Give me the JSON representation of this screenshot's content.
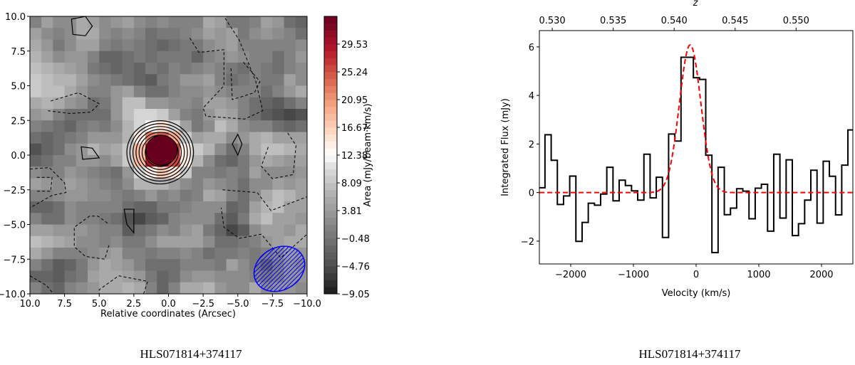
{
  "chart_data": [
    {
      "type": "heatmap",
      "xlabel": "Relative coordinates (Arcsec)",
      "ylabel": "",
      "xlim": [
        10.0,
        -10.0
      ],
      "ylim": [
        -10.0,
        10.0
      ],
      "xticks": [
        "10.0",
        "7.5",
        "5.0",
        "2.5",
        "0.0",
        "−2.5",
        "−5.0",
        "−7.5",
        "−10.0"
      ],
      "yticks": [
        "10.0",
        "7.5",
        "5.0",
        "2.5",
        "0.0",
        "−2.5",
        "−5.0",
        "−7.5",
        "−10.0"
      ],
      "colorbar": {
        "label": "Area (mJy/beam·km/s)",
        "range": [
          -9.05,
          33.81
        ],
        "ticks": [
          "29.53",
          "25.24",
          "20.95",
          "16.67",
          "12.38",
          "8.09",
          "3.81",
          "−0.48",
          "−4.76",
          "−9.05"
        ],
        "tick_values": [
          29.53,
          25.24,
          20.95,
          16.67,
          12.38,
          8.09,
          3.81,
          -0.48,
          -4.76,
          -9.05
        ],
        "colormap": "RdGy_r"
      },
      "source": {
        "x": 0.5,
        "y": 0.3,
        "peak": 32.0
      },
      "beam": {
        "x": -8.0,
        "y": -8.2,
        "major": 3.8,
        "minor": 2.7,
        "color": "#0000ff"
      },
      "caption": "HLS071814+374117"
    },
    {
      "type": "line",
      "xlabel": "Velocity (km/s)",
      "ylabel": "Integrated Flux (mJy)",
      "top_xlabel": "z",
      "xlim": [
        -2500,
        2500
      ],
      "ylim": [
        -2.94,
        6.67
      ],
      "xticks": [
        -2000,
        -1000,
        0,
        1000,
        2000
      ],
      "xtick_labels": [
        "−2000",
        "−1000",
        "0",
        "1000",
        "2000"
      ],
      "yticks": [
        -2,
        0,
        2,
        4,
        6
      ],
      "ytick_labels": [
        "−2",
        "0",
        "2",
        "4",
        "6"
      ],
      "top_ticks": [
        0.53,
        0.535,
        0.54,
        0.545,
        0.55
      ],
      "top_tick_labels": [
        "0.530",
        "0.535",
        "0.540",
        "0.545",
        "0.550"
      ],
      "z_at_zero_velocity": 0.5418,
      "series": [
        {
          "style": "step",
          "color": "#000000",
          "velocity": [
            -2460,
            -2361,
            -2262,
            -2164,
            -2065,
            -1967,
            -1868,
            -1769,
            -1671,
            -1572,
            -1474,
            -1375,
            -1276,
            -1178,
            -1079,
            -981,
            -882,
            -783,
            -685,
            -586,
            -488,
            -389,
            -290,
            -192,
            -93,
            6,
            104,
            203,
            301,
            400,
            499,
            597,
            696,
            794,
            893,
            992,
            1090,
            1189,
            1287,
            1386,
            1485,
            1583,
            1682,
            1780,
            1879,
            1978,
            2076,
            2175,
            2273,
            2372,
            2470
          ],
          "flux": [
            0.2,
            2.38,
            1.33,
            -0.49,
            -0.14,
            0.68,
            -2.01,
            -1.23,
            -0.44,
            -0.52,
            -0.06,
            1.04,
            -0.34,
            0.51,
            0.29,
            0.07,
            -0.31,
            1.58,
            -0.22,
            0.63,
            -1.85,
            2.41,
            2.12,
            5.57,
            5.57,
            4.73,
            4.66,
            1.54,
            -2.47,
            1.04,
            -0.91,
            -0.64,
            0.16,
            0.06,
            -1.08,
            0.18,
            0.34,
            -1.59,
            1.58,
            -1.05,
            1.35,
            -1.77,
            -1.28,
            -0.31,
            0.92,
            -1.26,
            1.29,
            0.67,
            -0.92,
            1.13,
            2.58
          ]
        },
        {
          "style": "gaussian-fit-dashed",
          "color": "#ff0000",
          "amplitude": 6.08,
          "center": -95,
          "fwhm": 402
        }
      ],
      "caption": "HLS071814+374117"
    }
  ]
}
